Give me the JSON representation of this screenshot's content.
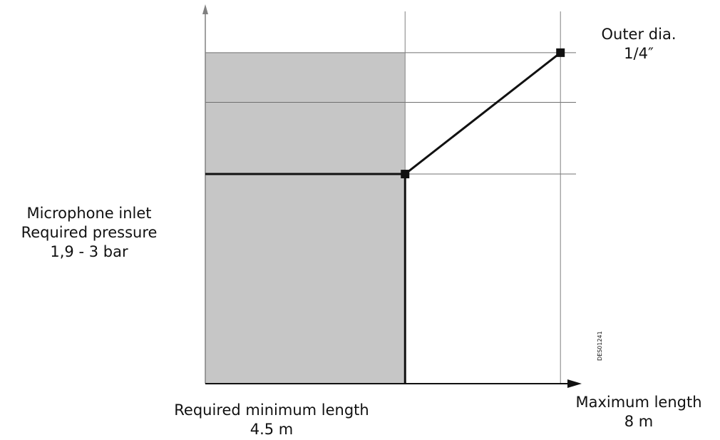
{
  "chart_data": {
    "type": "line",
    "title": "",
    "xlabel": "",
    "ylabel": "",
    "x_markers": [
      {
        "value": 4.5,
        "label_lines": [
          "Required minimum length",
          "4.5 m"
        ]
      },
      {
        "value": 8,
        "label_lines": [
          "Maximum length",
          "8 m"
        ]
      }
    ],
    "y_band_label_lines": [
      "Microphone inlet",
      "Required pressure",
      "1,9 - 3 bar"
    ],
    "series": [
      {
        "name": "Outer dia. 1/4\"",
        "label_lines": [
          "Outer dia.",
          "1/4″"
        ],
        "points": [
          [
            4.5,
            1.9
          ],
          [
            8,
            3
          ]
        ]
      }
    ],
    "shaded_region": {
      "x_from": 0,
      "x_to": 4.5
    },
    "xlim": [
      0,
      8.35
    ],
    "ylim": [
      0,
      3.4
    ],
    "gridlines_y": [
      1.9,
      2.55,
      3
    ],
    "grid": false,
    "colors": {
      "axis": "#808080",
      "line": "#111111",
      "shade": "#c6c6c6",
      "grid": "#707070"
    },
    "code": "DES01241"
  }
}
